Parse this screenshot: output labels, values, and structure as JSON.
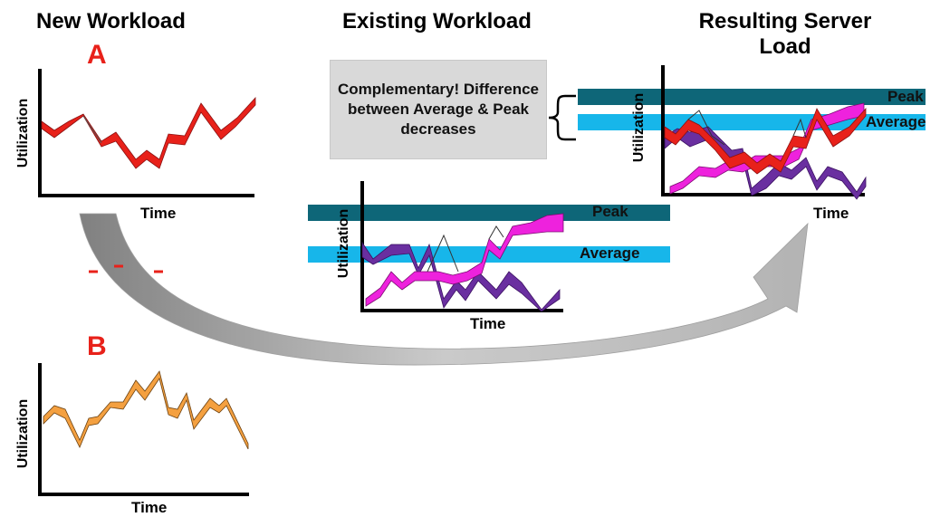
{
  "titles": {
    "new_workload": "New Workload",
    "existing_workload": "Existing Workload",
    "resulting_server_load_line1": "Resulting Server",
    "resulting_server_load_line2": "Load"
  },
  "workload_a": {
    "letter": "A",
    "ylabel": "Utilization",
    "xlabel": "Time"
  },
  "workload_b": {
    "letter": "B",
    "ylabel": "Utilization",
    "xlabel": "Time"
  },
  "existing_chart": {
    "ylabel": "Utilization",
    "xlabel": "Time",
    "peak_label": "Peak",
    "average_label": "Average"
  },
  "result_chart": {
    "ylabel": "Utilization",
    "xlabel": "Time",
    "peak_label": "Peak",
    "average_label": "Average"
  },
  "note": {
    "text": "Complementary! Difference between Average & Peak decreases"
  },
  "colors": {
    "workload_a": "#e8211a",
    "workload_b": "#f4a040",
    "existing_magenta": "#ee22dd",
    "existing_purple": "#6a2fa0",
    "peak_band": "#0e6678",
    "average_band": "#17b6ea",
    "arrow_gray": "#a8a8a8",
    "note_bg": "#d9d9d9"
  },
  "icons": {
    "arrow": "curved-arrow-icon",
    "brace": "brace-icon"
  }
}
